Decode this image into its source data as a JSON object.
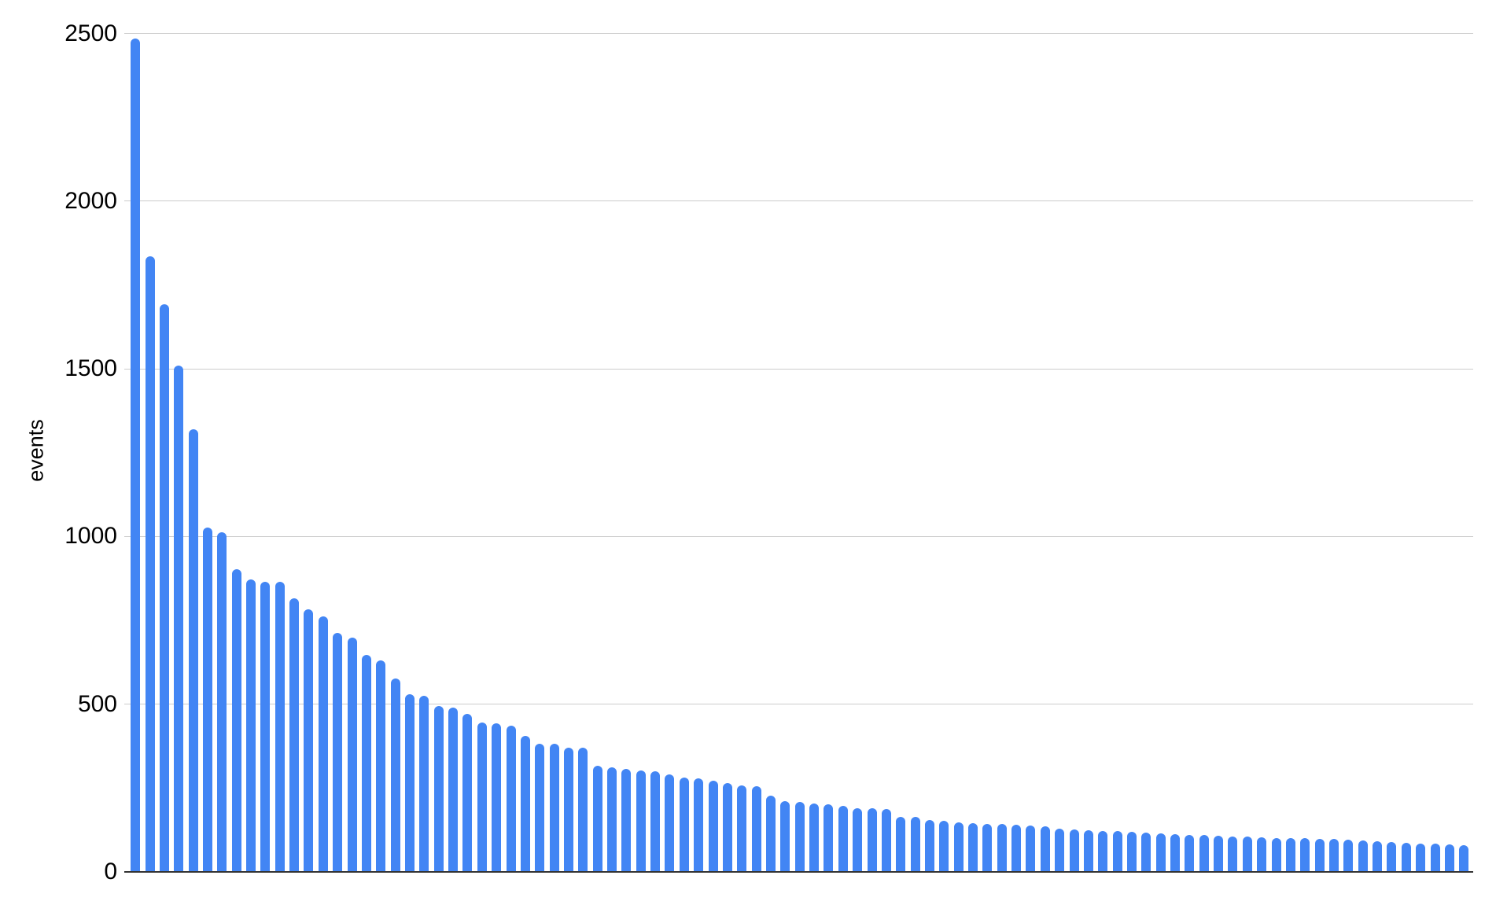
{
  "chart_data": {
    "type": "bar",
    "title": "",
    "xlabel": "",
    "ylabel": "events",
    "ylim": [
      0,
      2500
    ],
    "yticks": [
      0,
      500,
      1000,
      1500,
      2000,
      2500
    ],
    "grid": true,
    "legend_position": "none",
    "x_tick_labels": "none",
    "n_bars": 93,
    "bar_color": "#4285f4",
    "gridline_color": "#cccccc",
    "axis_color": "#333333",
    "values": [
      2485,
      1835,
      1692,
      1510,
      1320,
      1028,
      1012,
      903,
      871,
      866,
      865,
      815,
      784,
      761,
      712,
      698,
      646,
      631,
      577,
      530,
      526,
      495,
      491,
      472,
      445,
      442,
      437,
      405,
      383,
      381,
      371,
      370,
      317,
      312,
      308,
      302,
      300,
      291,
      282,
      278,
      273,
      264,
      257,
      255,
      228,
      210,
      208,
      204,
      202,
      196,
      190,
      189,
      188,
      165,
      164,
      154,
      152,
      148,
      146,
      144,
      142,
      141,
      138,
      136,
      129,
      126,
      124,
      122,
      121,
      120,
      118,
      114,
      113,
      111,
      110,
      107,
      106,
      105,
      104,
      102,
      101,
      100,
      99,
      98,
      97,
      94,
      92,
      88,
      86,
      85,
      84,
      81,
      79
    ]
  }
}
